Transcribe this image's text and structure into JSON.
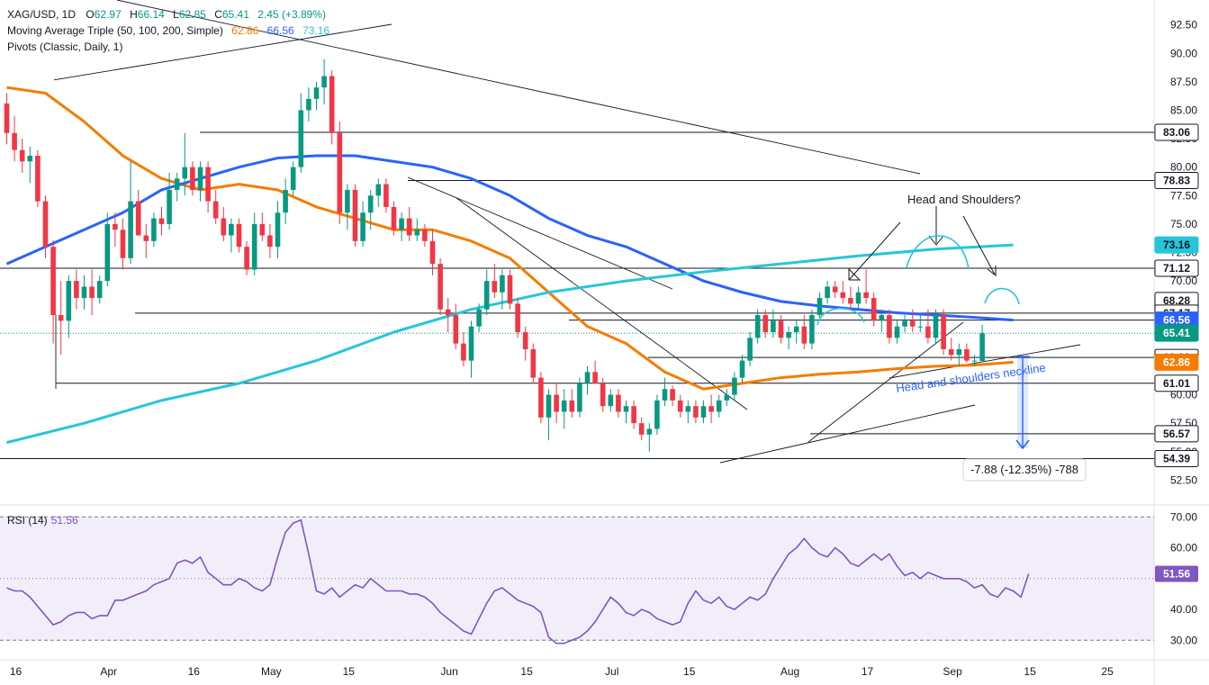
{
  "header": {
    "symbol": "XAG/USD, 1D",
    "open_label": "O",
    "open": "62.97",
    "high_label": "H",
    "high": "66.14",
    "low_label": "L",
    "low": "62.85",
    "close_label": "C",
    "close": "65.41",
    "change": "2.45 (+3.89%)",
    "ma_title": "Moving Average Triple (50, 100, 200, Simple)",
    "ma_values": [
      "62.86",
      "66.56",
      "73.16"
    ],
    "pivots_title": "Pivots (Classic, Daily, 1)"
  },
  "colors": {
    "up": "#089981",
    "down": "#f23645",
    "ma50": "#f57c00",
    "ma100": "#2962ff",
    "ma200": "#26c6da",
    "rsi": "#7e57c2",
    "anno_blue": "#2962ff"
  },
  "chart_data": {
    "type": "candlestick",
    "price_axis": {
      "ylim": [
        51.5,
        93.5
      ],
      "ticks": [
        "92.50",
        "90.00",
        "87.50",
        "85.00",
        "82.50",
        "80.00",
        "77.50",
        "75.00",
        "72.50",
        "70.00",
        "67.50",
        "65.00",
        "62.50",
        "60.00",
        "57.50",
        "55.00",
        "52.50"
      ]
    },
    "x_ticks": [
      {
        "label": "16",
        "bar": 0
      },
      {
        "label": "Apr",
        "bar": 12
      },
      {
        "label": "16",
        "bar": 23
      },
      {
        "label": "May",
        "bar": 33
      },
      {
        "label": "15",
        "bar": 43
      },
      {
        "label": "Jun",
        "bar": 56
      },
      {
        "label": "15",
        "bar": 66
      },
      {
        "label": "Jul",
        "bar": 77
      },
      {
        "label": "15",
        "bar": 87
      },
      {
        "label": "Aug",
        "bar": 100
      },
      {
        "label": "17",
        "bar": 110
      },
      {
        "label": "Sep",
        "bar": 121
      },
      {
        "label": "15",
        "bar": 131
      },
      {
        "label": "25",
        "bar": 141
      }
    ],
    "candles_ohlc": [
      [
        85.6,
        86.5,
        82.0,
        83.0
      ],
      [
        83.0,
        84.5,
        80.5,
        81.5
      ],
      [
        81.5,
        82.5,
        79.5,
        80.5
      ],
      [
        80.5,
        81.8,
        78.6,
        81.0
      ],
      [
        81.0,
        81.5,
        76.5,
        77.0
      ],
      [
        77.0,
        77.5,
        72.0,
        73.0
      ],
      [
        73.0,
        73.6,
        64.5,
        67.0
      ],
      [
        67.0,
        70.0,
        63.5,
        66.5
      ],
      [
        66.5,
        70.5,
        65.0,
        70.0
      ],
      [
        70.0,
        71.0,
        67.5,
        68.5
      ],
      [
        68.5,
        70.5,
        67.5,
        69.5
      ],
      [
        69.5,
        71.0,
        67.0,
        68.5
      ],
      [
        68.5,
        70.5,
        68.0,
        70.0
      ],
      [
        70.0,
        76.0,
        69.5,
        75.0
      ],
      [
        75.0,
        76.0,
        73.0,
        74.5
      ],
      [
        74.5,
        75.5,
        71.0,
        72.0
      ],
      [
        72.0,
        80.5,
        71.5,
        77.0
      ],
      [
        77.0,
        78.0,
        74.5,
        74.0
      ],
      [
        74.0,
        75.0,
        72.0,
        73.5
      ],
      [
        73.5,
        76.0,
        73.0,
        75.5
      ],
      [
        75.5,
        76.5,
        74.0,
        75.0
      ],
      [
        75.0,
        79.5,
        74.5,
        78.0
      ],
      [
        78.0,
        79.5,
        77.0,
        79.0
      ],
      [
        79.0,
        83.0,
        77.5,
        80.0
      ],
      [
        80.0,
        80.5,
        77.5,
        78.0
      ],
      [
        78.0,
        80.5,
        77.0,
        80.0
      ],
      [
        80.0,
        80.5,
        76.0,
        77.0
      ],
      [
        77.0,
        78.0,
        75.0,
        75.5
      ],
      [
        75.5,
        76.5,
        73.5,
        74.0
      ],
      [
        74.0,
        75.5,
        72.5,
        75.0
      ],
      [
        75.0,
        75.5,
        72.5,
        73.0
      ],
      [
        73.0,
        73.5,
        70.5,
        71.0
      ],
      [
        71.0,
        76.0,
        70.5,
        75.0
      ],
      [
        75.0,
        76.0,
        73.5,
        74.0
      ],
      [
        74.0,
        75.0,
        72.0,
        73.0
      ],
      [
        73.0,
        77.0,
        72.0,
        76.0
      ],
      [
        76.0,
        79.0,
        75.0,
        78.0
      ],
      [
        78.0,
        80.5,
        77.5,
        80.0
      ],
      [
        80.0,
        86.5,
        79.5,
        85.0
      ],
      [
        85.0,
        87.0,
        84.0,
        86.0
      ],
      [
        86.0,
        87.5,
        85.0,
        87.0
      ],
      [
        87.0,
        89.5,
        85.5,
        88.0
      ],
      [
        88.0,
        88.5,
        82.0,
        83.0
      ],
      [
        83.0,
        84.0,
        75.0,
        76.0
      ],
      [
        76.0,
        78.5,
        74.5,
        78.0
      ],
      [
        78.0,
        78.5,
        73.0,
        73.5
      ],
      [
        73.5,
        77.0,
        73.0,
        76.0
      ],
      [
        76.0,
        78.0,
        74.5,
        77.5
      ],
      [
        77.5,
        79.0,
        76.5,
        78.5
      ],
      [
        78.5,
        79.0,
        76.0,
        76.5
      ],
      [
        76.5,
        77.0,
        74.0,
        74.5
      ],
      [
        74.5,
        76.0,
        73.5,
        75.5
      ],
      [
        75.5,
        76.5,
        73.5,
        74.0
      ],
      [
        74.0,
        75.5,
        73.5,
        74.5
      ],
      [
        74.5,
        75.0,
        73.0,
        73.5
      ],
      [
        73.5,
        74.5,
        70.5,
        71.5
      ],
      [
        71.5,
        72.0,
        67.0,
        67.5
      ],
      [
        67.5,
        68.5,
        65.5,
        67.0
      ],
      [
        67.0,
        68.0,
        64.0,
        64.5
      ],
      [
        64.5,
        65.5,
        62.5,
        63.0
      ],
      [
        63.0,
        66.5,
        61.5,
        66.0
      ],
      [
        66.0,
        68.0,
        65.5,
        67.5
      ],
      [
        67.5,
        71.0,
        67.0,
        70.0
      ],
      [
        70.0,
        71.5,
        68.5,
        69.0
      ],
      [
        69.0,
        71.0,
        67.5,
        70.5
      ],
      [
        70.5,
        71.0,
        67.5,
        68.0
      ],
      [
        68.0,
        68.5,
        65.0,
        65.5
      ],
      [
        65.5,
        66.0,
        63.0,
        64.0
      ],
      [
        64.0,
        64.5,
        61.0,
        61.5
      ],
      [
        61.5,
        62.0,
        57.5,
        58.0
      ],
      [
        58.0,
        60.5,
        56.0,
        60.0
      ],
      [
        60.0,
        61.0,
        57.5,
        58.5
      ],
      [
        58.5,
        60.5,
        57.0,
        59.5
      ],
      [
        59.5,
        60.5,
        58.0,
        58.5
      ],
      [
        58.5,
        61.5,
        58.0,
        61.0
      ],
      [
        61.0,
        62.5,
        60.0,
        62.0
      ],
      [
        62.0,
        63.0,
        61.0,
        61.0
      ],
      [
        61.0,
        61.5,
        58.5,
        59.0
      ],
      [
        59.0,
        60.5,
        58.5,
        60.0
      ],
      [
        60.0,
        60.5,
        58.0,
        58.5
      ],
      [
        58.5,
        59.5,
        57.5,
        59.0
      ],
      [
        59.0,
        59.5,
        57.0,
        57.5
      ],
      [
        57.5,
        58.0,
        56.0,
        56.5
      ],
      [
        56.5,
        57.5,
        55.0,
        57.0
      ],
      [
        57.0,
        60.0,
        56.5,
        59.5
      ],
      [
        59.5,
        61.5,
        59.0,
        60.5
      ],
      [
        60.5,
        60.8,
        59.0,
        59.5
      ],
      [
        59.5,
        60.0,
        58.0,
        58.5
      ],
      [
        58.5,
        59.5,
        57.5,
        59.0
      ],
      [
        59.0,
        59.5,
        57.5,
        58.0
      ],
      [
        58.0,
        59.5,
        57.5,
        59.0
      ],
      [
        59.0,
        60.0,
        57.5,
        58.5
      ],
      [
        58.5,
        60.0,
        58.0,
        59.5
      ],
      [
        59.5,
        60.5,
        59.0,
        60.0
      ],
      [
        60.0,
        62.0,
        59.5,
        61.5
      ],
      [
        61.5,
        63.5,
        61.0,
        63.0
      ],
      [
        63.0,
        65.5,
        62.5,
        65.0
      ],
      [
        65.0,
        67.5,
        64.5,
        67.0
      ],
      [
        67.0,
        67.5,
        65.0,
        65.5
      ],
      [
        65.5,
        67.5,
        65.0,
        66.5
      ],
      [
        66.5,
        67.0,
        64.5,
        65.0
      ],
      [
        65.0,
        66.0,
        64.0,
        65.5
      ],
      [
        65.5,
        66.5,
        64.5,
        66.0
      ],
      [
        66.0,
        67.0,
        64.0,
        64.5
      ],
      [
        64.5,
        67.5,
        64.0,
        67.0
      ],
      [
        67.0,
        69.0,
        66.5,
        68.5
      ],
      [
        68.5,
        70.0,
        68.0,
        69.5
      ],
      [
        69.5,
        70.0,
        68.5,
        69.0
      ],
      [
        69.0,
        70.0,
        68.0,
        68.5
      ],
      [
        68.5,
        69.5,
        67.5,
        68.0
      ],
      [
        68.0,
        69.5,
        67.5,
        69.0
      ],
      [
        69.0,
        71.0,
        68.0,
        68.5
      ],
      [
        68.5,
        69.0,
        66.0,
        66.5
      ],
      [
        66.5,
        67.5,
        65.5,
        67.0
      ],
      [
        67.0,
        67.5,
        64.5,
        65.0
      ],
      [
        65.0,
        66.5,
        64.5,
        66.0
      ],
      [
        66.0,
        67.0,
        65.5,
        66.5
      ],
      [
        66.5,
        67.5,
        65.5,
        66.0
      ],
      [
        66.0,
        67.0,
        65.5,
        66.0
      ],
      [
        66.0,
        67.5,
        64.5,
        65.0
      ],
      [
        65.0,
        67.5,
        64.5,
        67.0
      ],
      [
        67.0,
        67.5,
        63.5,
        64.0
      ],
      [
        64.0,
        65.0,
        63.0,
        63.5
      ],
      [
        63.5,
        64.5,
        62.5,
        64.0
      ],
      [
        64.0,
        64.5,
        62.8,
        63.0
      ],
      [
        63.0,
        63.5,
        62.5,
        63.0
      ],
      [
        62.97,
        66.14,
        62.85,
        65.41
      ]
    ],
    "series": [
      {
        "name": "MA 50",
        "value": 62.86,
        "points": [
          [
            0,
            87.0
          ],
          [
            5,
            86.5
          ],
          [
            10,
            84.0
          ],
          [
            15,
            81.0
          ],
          [
            20,
            79.0
          ],
          [
            25,
            78.0
          ],
          [
            30,
            78.5
          ],
          [
            35,
            78.0
          ],
          [
            40,
            76.5
          ],
          [
            45,
            75.5
          ],
          [
            50,
            74.5
          ],
          [
            55,
            74.5
          ],
          [
            60,
            73.5
          ],
          [
            65,
            72.0
          ],
          [
            70,
            69.0
          ],
          [
            75,
            66.0
          ],
          [
            80,
            64.5
          ],
          [
            85,
            62.0
          ],
          [
            90,
            60.5
          ],
          [
            95,
            61.0
          ],
          [
            100,
            61.5
          ],
          [
            105,
            61.8
          ],
          [
            110,
            62.0
          ],
          [
            115,
            62.3
          ],
          [
            120,
            62.5
          ],
          [
            125,
            62.6
          ],
          [
            130,
            62.86
          ]
        ]
      },
      {
        "name": "MA 100",
        "value": 66.56,
        "points": [
          [
            0,
            71.5
          ],
          [
            5,
            73.0
          ],
          [
            10,
            74.5
          ],
          [
            15,
            76.0
          ],
          [
            20,
            78.0
          ],
          [
            25,
            79.0
          ],
          [
            30,
            80.0
          ],
          [
            35,
            80.8
          ],
          [
            40,
            81.0
          ],
          [
            45,
            81.0
          ],
          [
            50,
            80.5
          ],
          [
            55,
            80.0
          ],
          [
            60,
            79.0
          ],
          [
            65,
            77.5
          ],
          [
            70,
            75.5
          ],
          [
            75,
            74.0
          ],
          [
            80,
            73.0
          ],
          [
            85,
            71.5
          ],
          [
            90,
            70.0
          ],
          [
            95,
            69.0
          ],
          [
            100,
            68.2
          ],
          [
            105,
            67.8
          ],
          [
            110,
            67.5
          ],
          [
            115,
            67.2
          ],
          [
            120,
            67.0
          ],
          [
            125,
            66.8
          ],
          [
            130,
            66.56
          ]
        ]
      },
      {
        "name": "MA 200",
        "value": 73.16,
        "points": [
          [
            0,
            55.8
          ],
          [
            10,
            57.5
          ],
          [
            20,
            59.5
          ],
          [
            30,
            61.0
          ],
          [
            40,
            63.0
          ],
          [
            50,
            65.5
          ],
          [
            60,
            67.5
          ],
          [
            70,
            69.0
          ],
          [
            80,
            70.0
          ],
          [
            90,
            70.8
          ],
          [
            100,
            71.5
          ],
          [
            110,
            72.2
          ],
          [
            120,
            72.8
          ],
          [
            130,
            73.16
          ]
        ]
      }
    ],
    "price_labels": [
      {
        "value": 83.06,
        "text": "83.06"
      },
      {
        "value": 78.83,
        "text": "78.83"
      },
      {
        "value": 73.16,
        "text": "73.16"
      },
      {
        "value": 71.12,
        "text": "71.12"
      },
      {
        "value": 68.28,
        "text": "68.28"
      },
      {
        "value": 67.17,
        "text": "67.17"
      },
      {
        "value": 66.56,
        "text": "66.56"
      },
      {
        "value": 65.41,
        "text": "65.41"
      },
      {
        "value": 63.28,
        "text": "63.28"
      },
      {
        "value": 62.86,
        "text": "62.86"
      },
      {
        "value": 61.01,
        "text": "61.01"
      },
      {
        "value": 56.57,
        "text": "56.57"
      },
      {
        "value": 54.39,
        "text": "54.39"
      }
    ],
    "annotations": {
      "head_and_shoulders": "Head and Shoulders?",
      "neckline": "Head and shoulders neckline",
      "measure": "-7.88 (-12.35%) -788"
    },
    "rsi": {
      "title": "RSI (14)",
      "value": "51.56",
      "value_num": 51.56,
      "ylim": [
        26,
        73
      ],
      "ticks": [
        "70.00",
        "60.00",
        "40.00",
        "30.00"
      ],
      "bands": [
        30,
        70
      ],
      "mid": 50,
      "values": [
        47,
        46,
        46,
        44,
        41,
        38,
        35,
        36,
        38,
        39,
        39,
        37,
        38,
        38,
        43,
        43,
        44,
        45,
        46,
        48,
        49,
        50,
        55,
        56,
        55,
        57,
        52,
        50,
        48,
        48,
        50,
        49,
        47,
        46,
        48,
        57,
        65,
        68,
        69,
        58,
        46,
        45,
        47,
        44,
        46,
        48,
        47,
        50,
        48,
        46,
        46,
        46,
        45,
        45,
        44,
        42,
        39,
        37,
        35,
        33,
        32,
        37,
        42,
        46,
        47,
        45,
        43,
        42,
        41,
        39,
        31,
        29,
        29,
        30,
        31,
        33,
        36,
        40,
        44,
        42,
        39,
        38,
        40,
        39,
        37,
        36,
        35,
        36,
        42,
        46,
        43,
        42,
        44,
        41,
        40,
        42,
        44,
        43,
        45,
        50,
        54,
        58,
        60,
        63,
        60,
        58,
        57,
        60,
        58,
        55,
        54,
        56,
        58,
        56,
        58,
        54,
        51,
        52,
        50,
        52,
        51,
        50,
        50,
        50,
        49,
        47,
        48,
        45,
        44,
        47,
        46,
        44,
        51.56
      ]
    }
  }
}
